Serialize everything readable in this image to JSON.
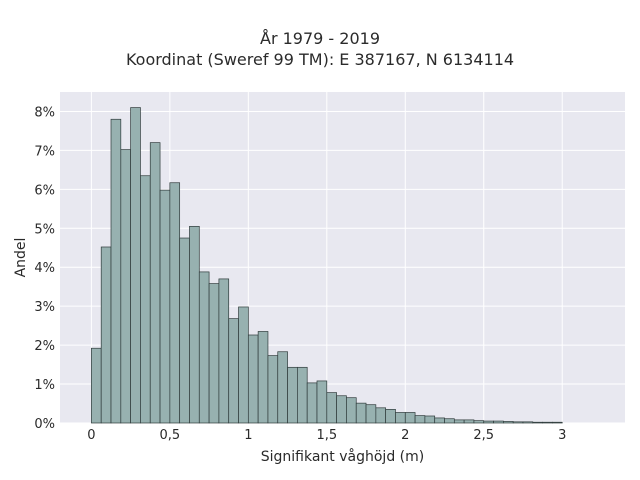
{
  "chart_data": {
    "type": "bar",
    "title": "År 1979 - 2019",
    "subtitle": "Koordinat (Sweref 99 TM): E 387167, N 6134114",
    "xlabel": "Signifikant våghöjd (m)",
    "ylabel": "Andel",
    "bin_width": 0.0625,
    "bin_start": 0.0,
    "values": [
      1.92,
      4.52,
      7.8,
      7.02,
      8.1,
      6.35,
      7.2,
      5.98,
      6.17,
      4.75,
      5.05,
      3.88,
      3.58,
      3.7,
      2.68,
      2.98,
      2.26,
      2.35,
      1.73,
      1.83,
      1.43,
      1.43,
      1.03,
      1.08,
      0.78,
      0.7,
      0.65,
      0.51,
      0.47,
      0.39,
      0.35,
      0.27,
      0.27,
      0.19,
      0.18,
      0.13,
      0.11,
      0.08,
      0.08,
      0.06,
      0.05,
      0.05,
      0.04,
      0.03,
      0.03,
      0.02,
      0.02,
      0.02
    ],
    "xlim": [
      -0.2,
      3.4
    ],
    "ylim": [
      0,
      8.5
    ],
    "x_ticks": [
      0,
      0.5,
      1,
      1.5,
      2,
      2.5,
      3
    ],
    "x_tick_labels": [
      "0",
      "0,5",
      "1",
      "1,5",
      "2",
      "2,5",
      "3"
    ],
    "y_ticks": [
      0,
      1,
      2,
      3,
      4,
      5,
      6,
      7,
      8
    ],
    "y_tick_labels": [
      "0%",
      "1%",
      "2%",
      "3%",
      "4%",
      "5%",
      "6%",
      "7%",
      "8%"
    ],
    "grid": true,
    "colors": {
      "bar_fill": "#97b1b0",
      "bar_stroke": "#2f3b3b",
      "plot_bg": "#e8e8f0",
      "grid": "#ffffff"
    }
  }
}
